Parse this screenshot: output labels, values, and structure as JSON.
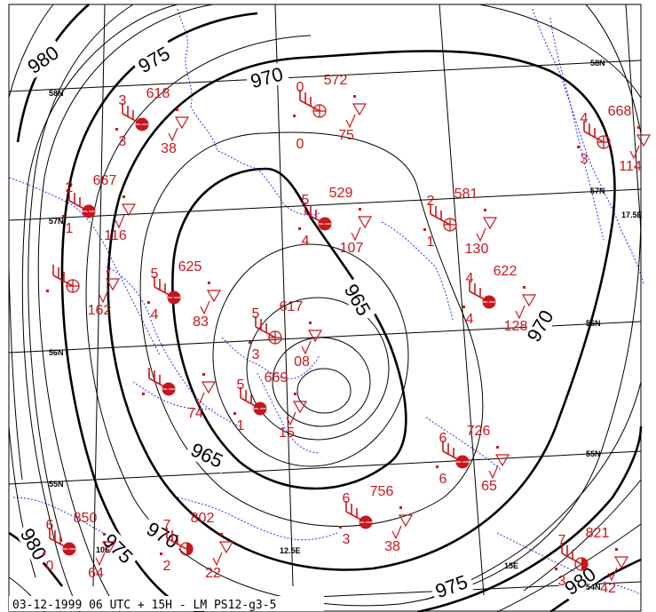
{
  "caption": "03-12-1999 06 UTC + 15H  -  LM PS12-g3-5",
  "colors": {
    "isobar": "#000000",
    "coast": "#2b2bff",
    "station": "#c8161d",
    "background": "#ffffff"
  },
  "isobar_labels": [
    "980",
    "975",
    "970",
    "965",
    "965",
    "970",
    "970",
    "975",
    "975",
    "980",
    "980"
  ],
  "lat_labels": [
    "58N",
    "57N",
    "56N",
    "55N",
    "54N",
    "58N",
    "57N",
    "56N",
    "55N",
    "54N"
  ],
  "lon_labels": [
    "17.5E",
    "15E",
    "12.5E",
    "10E"
  ],
  "stations": [
    {
      "name": "station-618",
      "upper": "3",
      "value": "618",
      "left": "3",
      "lower": "38",
      "symbol": "filled-circle"
    },
    {
      "name": "station-572",
      "upper": "0",
      "value": "572",
      "left": "",
      "lower": "75",
      "symbol": "crossed-circle",
      "extra": "0"
    },
    {
      "name": "station-668",
      "upper": "4",
      "value": "668",
      "left": "3",
      "lower": "114",
      "symbol": "crossed-circle"
    },
    {
      "name": "station-667",
      "upper": "2",
      "value": "667",
      "left": "1",
      "lower": "116",
      "symbol": "filled-circle"
    },
    {
      "name": "station-529",
      "upper": "5",
      "value": "529",
      "left": "4",
      "lower": "107",
      "symbol": "filled-circle"
    },
    {
      "name": "station-581",
      "upper": "2",
      "value": "581",
      "left": "1",
      "lower": "130",
      "symbol": "crossed-circle"
    },
    {
      "name": "station-625",
      "upper": "5",
      "value": "625",
      "left": "4",
      "lower": "83",
      "symbol": "filled-circle"
    },
    {
      "name": "station-622",
      "upper": "4",
      "value": "622",
      "left": "4",
      "lower": "128",
      "symbol": "filled-circle"
    },
    {
      "name": "station-617",
      "upper": "5",
      "value": "617",
      "left": "3",
      "lower": "08",
      "symbol": "crossed-circle"
    },
    {
      "name": "station-669",
      "upper": "5",
      "value": "669",
      "left": "1",
      "lower": "15",
      "symbol": "filled-circle"
    },
    {
      "name": "station-726",
      "upper": "6",
      "value": "726",
      "left": "6",
      "lower": "65",
      "symbol": "filled-circle"
    },
    {
      "name": "station-756",
      "upper": "6",
      "value": "756",
      "left": "3",
      "lower": "38",
      "symbol": "filled-circle"
    },
    {
      "name": "station-802",
      "upper": "7",
      "value": "802",
      "left": "2",
      "lower": "22",
      "symbol": "half-circle"
    },
    {
      "name": "station-850",
      "upper": "6",
      "value": "850",
      "left": "0",
      "lower": "64",
      "symbol": "filled-circle"
    },
    {
      "name": "station-821",
      "upper": "7",
      "value": "821",
      "left": "3",
      "lower": "42",
      "symbol": "half-circle"
    },
    {
      "name": "station-162",
      "upper": "",
      "value": "",
      "left": "",
      "lower": "162",
      "symbol": "crossed-circle"
    },
    {
      "name": "station-74",
      "upper": "",
      "value": "",
      "left": "",
      "lower": "74",
      "symbol": "filled-circle"
    }
  ]
}
